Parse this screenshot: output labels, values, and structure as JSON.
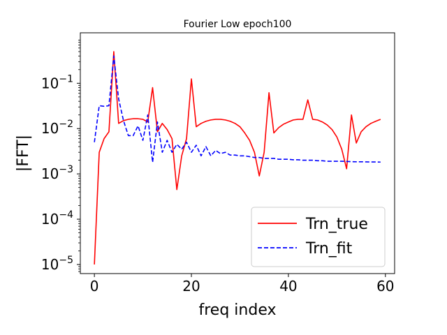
{
  "chart_data": {
    "type": "line",
    "title": "Fourier Low epoch100",
    "xlabel": "freq index",
    "ylabel": "|FFT|",
    "xlim": [
      -2.9,
      61.9
    ],
    "ylim": [
      6.3e-06,
      1.3
    ],
    "yscale": "log",
    "xticks": [
      0,
      20,
      40,
      60
    ],
    "yticks": [
      {
        "value": 1e-05,
        "base": "10",
        "exp": "−5"
      },
      {
        "value": 0.0001,
        "base": "10",
        "exp": "−4"
      },
      {
        "value": 0.001,
        "base": "10",
        "exp": "−3"
      },
      {
        "value": 0.01,
        "base": "10",
        "exp": "−2"
      },
      {
        "value": 0.1,
        "base": "10",
        "exp": "−1"
      }
    ],
    "grid": false,
    "legend_position": "lower-right",
    "series": [
      {
        "name": "Trn_true",
        "color": "#ff0000",
        "style": "solid",
        "x": [
          0,
          1,
          2,
          3,
          4,
          5,
          6,
          7,
          8,
          9,
          10,
          11,
          12,
          13,
          14,
          15,
          16,
          17,
          18,
          19,
          20,
          21,
          22,
          23,
          24,
          25,
          26,
          27,
          28,
          29,
          30,
          31,
          32,
          33,
          34,
          35,
          36,
          37,
          38,
          39,
          40,
          41,
          42,
          43,
          44,
          45,
          46,
          47,
          48,
          49,
          50,
          51,
          52,
          53,
          54,
          55,
          56,
          57,
          58,
          59
        ],
        "values": [
          1e-05,
          0.003,
          0.006,
          0.0085,
          0.5,
          0.013,
          0.015,
          0.016,
          0.0165,
          0.0165,
          0.016,
          0.014,
          0.08,
          0.0085,
          0.013,
          0.0095,
          0.006,
          0.00045,
          0.0025,
          0.006,
          0.125,
          0.011,
          0.013,
          0.0145,
          0.0155,
          0.016,
          0.016,
          0.0155,
          0.0145,
          0.013,
          0.011,
          0.008,
          0.0055,
          0.003,
          0.0009,
          0.003,
          0.062,
          0.008,
          0.0105,
          0.0125,
          0.014,
          0.0155,
          0.016,
          0.016,
          0.043,
          0.016,
          0.0155,
          0.014,
          0.012,
          0.0095,
          0.0065,
          0.0035,
          0.0013,
          0.02,
          0.0048,
          0.0085,
          0.011,
          0.013,
          0.0145,
          0.016
        ]
      },
      {
        "name": "Trn_fit",
        "color": "#0000ff",
        "style": "dashed",
        "x": [
          0,
          1,
          2,
          3,
          4,
          5,
          6,
          7,
          8,
          9,
          10,
          11,
          12,
          13,
          14,
          15,
          16,
          17,
          18,
          19,
          20,
          21,
          22,
          23,
          24,
          25,
          26,
          27,
          28,
          29,
          30,
          31,
          32,
          33,
          34,
          35,
          36,
          37,
          38,
          39,
          40,
          41,
          42,
          43,
          44,
          45,
          46,
          47,
          48,
          49,
          50,
          51,
          52,
          53,
          54,
          55,
          56,
          57,
          58,
          59
        ],
        "values": [
          0.005,
          0.032,
          0.031,
          0.032,
          0.4,
          0.045,
          0.015,
          0.007,
          0.007,
          0.0115,
          0.0055,
          0.02,
          0.0018,
          0.014,
          0.003,
          0.0055,
          0.003,
          0.0045,
          0.0035,
          0.005,
          0.003,
          0.0043,
          0.0025,
          0.004,
          0.0025,
          0.0033,
          0.0028,
          0.003,
          0.0026,
          0.0026,
          0.0025,
          0.0025,
          0.0024,
          0.0023,
          0.0023,
          0.0022,
          0.0022,
          0.0022,
          0.0021,
          0.0021,
          0.0021,
          0.00205,
          0.00205,
          0.002,
          0.002,
          0.002,
          0.00195,
          0.00195,
          0.0019,
          0.0019,
          0.0019,
          0.0019,
          0.00188,
          0.00186,
          0.00185,
          0.00185,
          0.00184,
          0.00183,
          0.00183,
          0.00182
        ]
      }
    ]
  }
}
